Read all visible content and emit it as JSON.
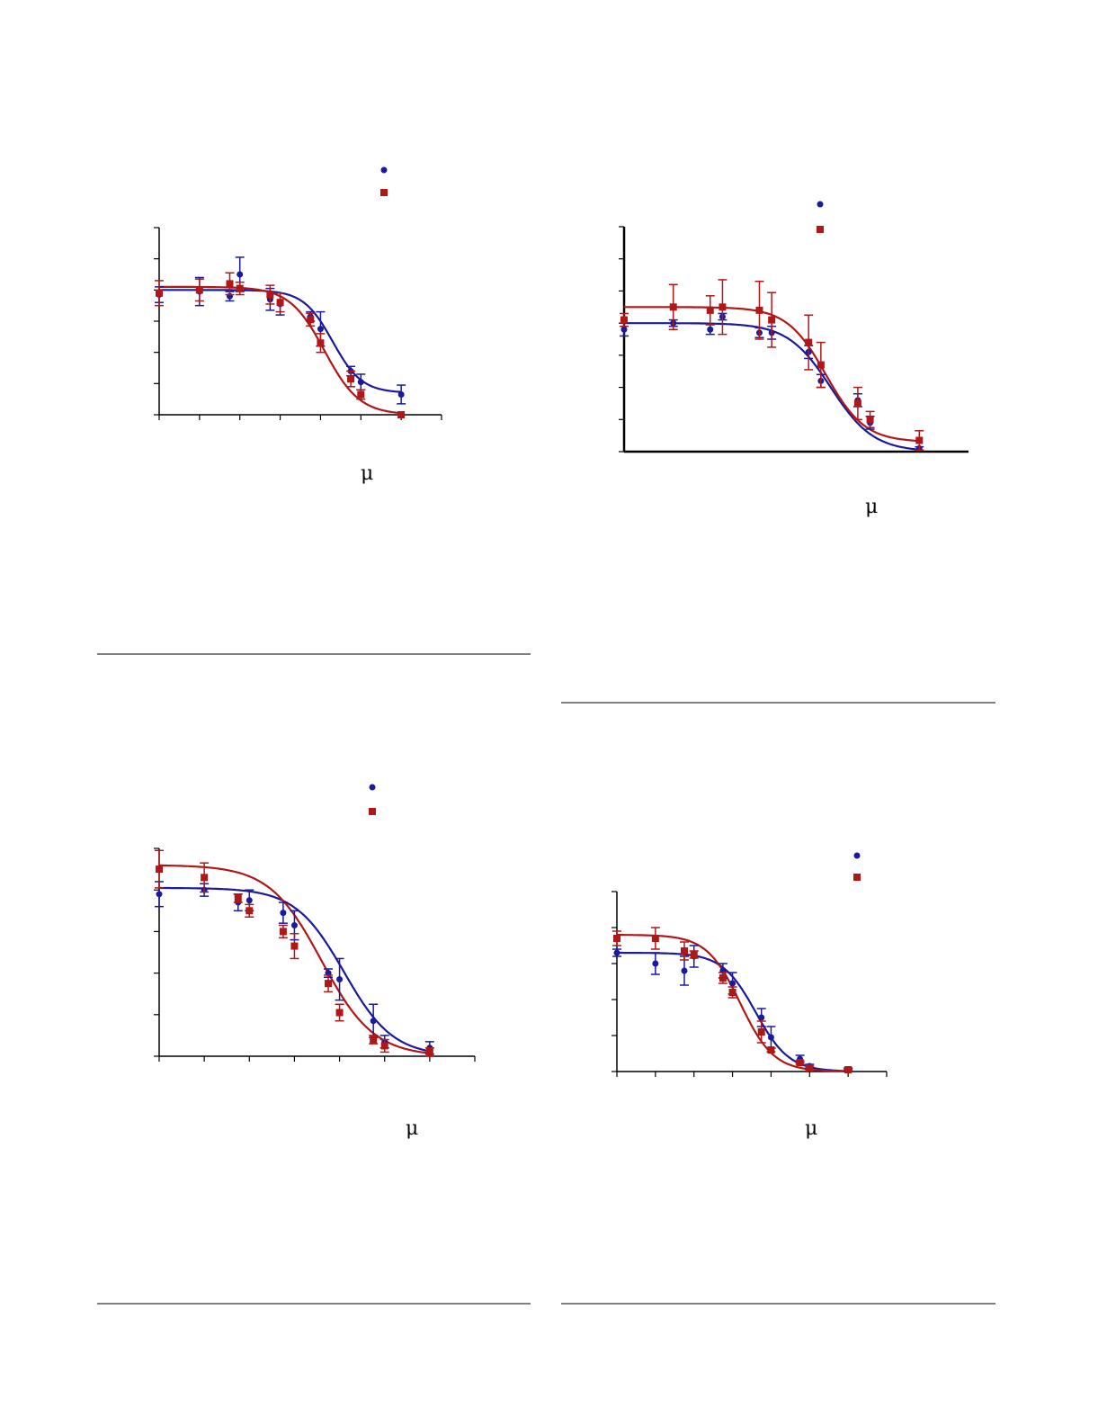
{
  "colors": {
    "series_a": "#1a1a9a",
    "series_b": "#b01818",
    "axis": "#000000"
  },
  "panels": [
    {
      "unit_symbol": "μ"
    },
    {
      "unit_symbol": "μ"
    },
    {
      "unit_symbol": "μ"
    },
    {
      "unit_symbol": "μ"
    }
  ],
  "chart_data": [
    {
      "type": "scatter",
      "title": "",
      "xlabel": "",
      "ylabel": "",
      "xlim": [
        0,
        7
      ],
      "ylim": [
        0,
        6
      ],
      "legend_position": "top-right",
      "grid": false,
      "series": [
        {
          "marker": "circle",
          "fit": {
            "top": 4.0,
            "bottom": 0.7,
            "x50": 4.3,
            "slope": 2.4
          },
          "points": [
            {
              "x": 0,
              "y": 3.85,
              "err": 0.25
            },
            {
              "x": 1,
              "y": 3.95,
              "err": 0.45
            },
            {
              "x": 1.75,
              "y": 3.8,
              "err": 0.15
            },
            {
              "x": 2,
              "y": 4.5,
              "err": 0.55
            },
            {
              "x": 2.75,
              "y": 3.7,
              "err": 0.35
            },
            {
              "x": 3,
              "y": 3.55,
              "err": 0.35
            },
            {
              "x": 3.75,
              "y": 3.15,
              "err": 0.15
            },
            {
              "x": 4,
              "y": 2.75,
              "err": 0.55
            },
            {
              "x": 4.75,
              "y": 1.4,
              "err": 0.15
            },
            {
              "x": 5,
              "y": 1.05,
              "err": 0.25
            },
            {
              "x": 6,
              "y": 0.65,
              "err": 0.3
            }
          ]
        },
        {
          "marker": "square",
          "fit": {
            "top": 4.1,
            "bottom": 0.0,
            "x50": 4.1,
            "slope": 2.0
          },
          "points": [
            {
              "x": 0,
              "y": 3.9,
              "err": 0.4
            },
            {
              "x": 1,
              "y": 4.0,
              "err": 0.35
            },
            {
              "x": 1.75,
              "y": 4.2,
              "err": 0.35
            },
            {
              "x": 2,
              "y": 4.05,
              "err": 0.2
            },
            {
              "x": 2.75,
              "y": 3.85,
              "err": 0.3
            },
            {
              "x": 3,
              "y": 3.6,
              "err": 0.3
            },
            {
              "x": 3.75,
              "y": 3.05,
              "err": 0.2
            },
            {
              "x": 4,
              "y": 2.3,
              "err": 0.3
            },
            {
              "x": 4.75,
              "y": 1.15,
              "err": 0.25
            },
            {
              "x": 5,
              "y": 0.65,
              "err": 0.15
            },
            {
              "x": 6,
              "y": 0.0,
              "err": 0
            }
          ]
        }
      ]
    },
    {
      "type": "scatter",
      "title": "",
      "xlabel": "",
      "ylabel": "",
      "xlim": [
        0,
        7
      ],
      "ylim": [
        0,
        7
      ],
      "legend_position": "top-right",
      "grid": false,
      "series": [
        {
          "marker": "circle",
          "fit": {
            "top": 4.0,
            "bottom": 0.0,
            "x50": 4.2,
            "slope": 2.0
          },
          "points": [
            {
              "x": 0,
              "y": 3.8,
              "err": 0.2
            },
            {
              "x": 1,
              "y": 4.0,
              "err": 0.1
            },
            {
              "x": 1.75,
              "y": 3.8,
              "err": 0.15
            },
            {
              "x": 2,
              "y": 4.2,
              "err": 0.1
            },
            {
              "x": 2.75,
              "y": 3.7,
              "err": 0.15
            },
            {
              "x": 3,
              "y": 3.7,
              "err": 0.2
            },
            {
              "x": 3.75,
              "y": 3.1,
              "err": 0.2
            },
            {
              "x": 4,
              "y": 2.2,
              "err": 0.2
            },
            {
              "x": 4.75,
              "y": 1.6,
              "err": 0.2
            },
            {
              "x": 5,
              "y": 0.9,
              "err": 0.2
            },
            {
              "x": 6,
              "y": 0.1,
              "err": 0.05
            }
          ]
        },
        {
          "marker": "square",
          "fit": {
            "top": 4.5,
            "bottom": 0.3,
            "x50": 4.1,
            "slope": 2.2
          },
          "points": [
            {
              "x": 0,
              "y": 4.1,
              "err": 0.2
            },
            {
              "x": 1,
              "y": 4.5,
              "err": 0.7
            },
            {
              "x": 1.75,
              "y": 4.4,
              "err": 0.45
            },
            {
              "x": 2,
              "y": 4.5,
              "err": 0.85
            },
            {
              "x": 2.75,
              "y": 4.4,
              "err": 0.9
            },
            {
              "x": 3,
              "y": 4.1,
              "err": 0.85
            },
            {
              "x": 3.75,
              "y": 3.4,
              "err": 0.85
            },
            {
              "x": 4,
              "y": 2.7,
              "err": 0.7
            },
            {
              "x": 4.75,
              "y": 1.5,
              "err": 0.5
            },
            {
              "x": 5,
              "y": 1.0,
              "err": 0.25
            },
            {
              "x": 6,
              "y": 0.35,
              "err": 0.3
            }
          ]
        }
      ]
    },
    {
      "type": "scatter",
      "title": "",
      "xlabel": "",
      "ylabel": "",
      "xlim": [
        0,
        7
      ],
      "ylim": [
        0,
        5
      ],
      "legend_position": "top-right",
      "grid": false,
      "series": [
        {
          "marker": "circle",
          "fit": {
            "top": 4.05,
            "bottom": 0.0,
            "x50": 4.1,
            "slope": 1.6
          },
          "points": [
            {
              "x": 0,
              "y": 3.9,
              "err": 0.3
            },
            {
              "x": 1,
              "y": 4.0,
              "err": 0.15
            },
            {
              "x": 1.75,
              "y": 3.7,
              "err": 0.2
            },
            {
              "x": 2,
              "y": 3.75,
              "err": 0.25
            },
            {
              "x": 2.75,
              "y": 3.45,
              "err": 0.25
            },
            {
              "x": 3,
              "y": 3.15,
              "err": 0.35
            },
            {
              "x": 3.75,
              "y": 2.0,
              "err": 0.1
            },
            {
              "x": 4,
              "y": 1.85,
              "err": 0.5
            },
            {
              "x": 4.75,
              "y": 0.85,
              "err": 0.4
            },
            {
              "x": 5,
              "y": 0.35,
              "err": 0.15
            },
            {
              "x": 6,
              "y": 0.2,
              "err": 0.15
            }
          ]
        },
        {
          "marker": "square",
          "fit": {
            "top": 4.6,
            "bottom": 0.0,
            "x50": 3.6,
            "slope": 1.5
          },
          "points": [
            {
              "x": 0,
              "y": 4.5,
              "err": 0.45
            },
            {
              "x": 1,
              "y": 4.3,
              "err": 0.35
            },
            {
              "x": 1.75,
              "y": 3.8,
              "err": 0.1
            },
            {
              "x": 2,
              "y": 3.5,
              "err": 0.15
            },
            {
              "x": 2.75,
              "y": 3.0,
              "err": 0.15
            },
            {
              "x": 3,
              "y": 2.65,
              "err": 0.3
            },
            {
              "x": 3.75,
              "y": 1.75,
              "err": 0.2
            },
            {
              "x": 4,
              "y": 1.05,
              "err": 0.2
            },
            {
              "x": 4.75,
              "y": 0.4,
              "err": 0.1
            },
            {
              "x": 5,
              "y": 0.25,
              "err": 0.15
            },
            {
              "x": 6,
              "y": 0.1,
              "err": 0.1
            }
          ]
        }
      ]
    },
    {
      "type": "scatter",
      "title": "",
      "xlabel": "",
      "ylabel": "",
      "xlim": [
        0,
        7
      ],
      "ylim": [
        0,
        5
      ],
      "legend_position": "top-right",
      "grid": false,
      "series": [
        {
          "marker": "circle",
          "fit": {
            "top": 3.3,
            "bottom": 0.0,
            "x50": 3.6,
            "slope": 2.0
          },
          "points": [
            {
              "x": 0,
              "y": 3.3,
              "err": 0.1
            },
            {
              "x": 1,
              "y": 3.0,
              "err": 0.3
            },
            {
              "x": 1.75,
              "y": 2.8,
              "err": 0.4
            },
            {
              "x": 2,
              "y": 3.2,
              "err": 0.3
            },
            {
              "x": 2.75,
              "y": 2.8,
              "err": 0.2
            },
            {
              "x": 3,
              "y": 2.45,
              "err": 0.3
            },
            {
              "x": 3.75,
              "y": 1.5,
              "err": 0.25
            },
            {
              "x": 4,
              "y": 0.95,
              "err": 0.3
            },
            {
              "x": 4.75,
              "y": 0.35,
              "err": 0.1
            },
            {
              "x": 5,
              "y": 0.15,
              "err": 0.05
            },
            {
              "x": 6,
              "y": 0.05,
              "err": 0.05
            }
          ]
        },
        {
          "marker": "square",
          "fit": {
            "top": 3.8,
            "bottom": 0.0,
            "x50": 3.2,
            "slope": 2.0
          },
          "points": [
            {
              "x": 0,
              "y": 3.7,
              "err": 0.2
            },
            {
              "x": 1,
              "y": 3.7,
              "err": 0.3
            },
            {
              "x": 1.75,
              "y": 3.35,
              "err": 0.25
            },
            {
              "x": 2,
              "y": 3.25,
              "err": 0.1
            },
            {
              "x": 2.75,
              "y": 2.6,
              "err": 0.15
            },
            {
              "x": 3,
              "y": 2.2,
              "err": 0.15
            },
            {
              "x": 3.75,
              "y": 1.1,
              "err": 0.3
            },
            {
              "x": 4,
              "y": 0.6,
              "err": 0.05
            },
            {
              "x": 4.75,
              "y": 0.25,
              "err": 0.05
            },
            {
              "x": 5,
              "y": 0.1,
              "err": 0.05
            },
            {
              "x": 6,
              "y": 0.05,
              "err": 0.02
            }
          ]
        }
      ]
    }
  ]
}
